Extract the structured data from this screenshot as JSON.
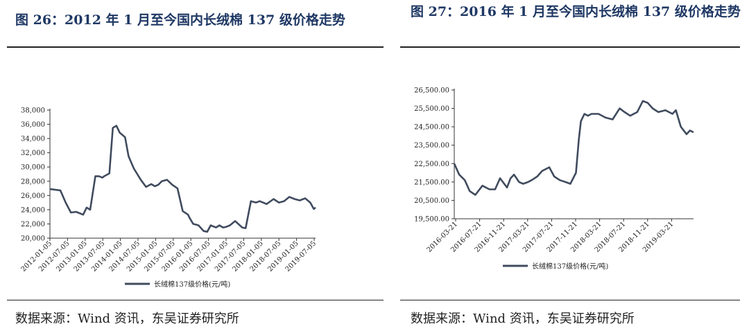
{
  "colors": {
    "line": "#404b5e",
    "title": "#1f3864",
    "axis": "#333333"
  },
  "left": {
    "title": "图 26：2012 年 1 月至今国内长绒棉 137 级价格走势",
    "source": "数据来源：Wind 资讯，东吴证券研究所"
  },
  "right": {
    "title": "图 27：2016 年 1 月至今国内长绒棉 137 级价格走势",
    "source": "数据来源：Wind 资讯，东吴证券研究所"
  },
  "chart_data": [
    {
      "type": "line",
      "ylim": [
        20000,
        38000
      ],
      "y_ticks": [
        20000,
        22000,
        24000,
        26000,
        28000,
        30000,
        32000,
        34000,
        36000,
        38000
      ],
      "y_tick_labels": [
        "20,000",
        "22,000",
        "24,000",
        "26,000",
        "28,000",
        "30,000",
        "32,000",
        "34,000",
        "36,000",
        "38,000"
      ],
      "x_tick_labels": [
        "2012-01-05",
        "2012-07-05",
        "2013-01-05",
        "2013-07-05",
        "2014-01-05",
        "2014-07-05",
        "2015-01-05",
        "2015-07-05",
        "2016-01-05",
        "2016-07-05",
        "2017-01-05",
        "2017-07-05",
        "2018-01-05",
        "2018-07-05",
        "2019-01-05",
        "2019-07-05"
      ],
      "grid": false,
      "legend_position": "bottom",
      "series": [
        {
          "name": "长绒棉137级价格(元/吨)",
          "x": [
            2012.0,
            2012.3,
            2012.45,
            2012.6,
            2012.75,
            2012.95,
            2013.05,
            2013.15,
            2013.3,
            2013.4,
            2013.5,
            2013.55,
            2013.7,
            2013.8,
            2013.9,
            2014.0,
            2014.05,
            2014.15,
            2014.25,
            2014.4,
            2014.5,
            2014.6,
            2014.75,
            2014.9,
            2015.0,
            2015.1,
            2015.2,
            2015.35,
            2015.5,
            2015.65,
            2015.8,
            2015.95,
            2016.0,
            2016.1,
            2016.25,
            2016.4,
            2016.5,
            2016.6,
            2016.75,
            2016.85,
            2016.95,
            2017.05,
            2017.15,
            2017.3,
            2017.5,
            2017.6,
            2017.75,
            2017.9,
            2018.0,
            2018.2,
            2018.4,
            2018.55,
            2018.7,
            2018.85,
            2019.0,
            2019.15,
            2019.3,
            2019.45,
            2019.55,
            2019.6
          ],
          "values": [
            26900,
            26700,
            25000,
            23600,
            23700,
            23300,
            24300,
            24000,
            28700,
            28700,
            28500,
            28700,
            29100,
            35500,
            35800,
            34800,
            34600,
            34200,
            31500,
            29800,
            29000,
            28200,
            27200,
            27600,
            27300,
            27500,
            28000,
            28200,
            27500,
            27000,
            23800,
            23300,
            22800,
            22000,
            21800,
            21000,
            20900,
            21800,
            21500,
            21800,
            21500,
            21600,
            21800,
            22400,
            21500,
            21400,
            25200,
            25000,
            25200,
            24800,
            25500,
            25000,
            25200,
            25800,
            25500,
            25300,
            25600,
            25000,
            24100,
            24300
          ]
        }
      ]
    },
    {
      "type": "line",
      "ylim": [
        19500,
        26500
      ],
      "y_ticks": [
        19500,
        20500,
        21500,
        22500,
        23500,
        24500,
        25500,
        26500
      ],
      "y_tick_labels": [
        "19,500.00",
        "20,500.00",
        "21,500.00",
        "22,500.00",
        "23,500.00",
        "24,500.00",
        "25,500.00",
        "26,500.00"
      ],
      "x_tick_labels": [
        "2016-03-21",
        "2016-07-21",
        "2016-11-21",
        "2017-03-21",
        "2017-07-21",
        "2017-11-21",
        "2018-03-21",
        "2018-07-21",
        "2018-11-21",
        "2019-03-21"
      ],
      "grid": false,
      "legend_position": "bottom",
      "series": [
        {
          "name": "长绒棉137级价格(元/吨)",
          "x": [
            2016.2,
            2016.27,
            2016.35,
            2016.42,
            2016.5,
            2016.6,
            2016.7,
            2016.78,
            2016.85,
            2016.95,
            2017.0,
            2017.05,
            2017.12,
            2017.18,
            2017.25,
            2017.3,
            2017.38,
            2017.45,
            2017.55,
            2017.62,
            2017.7,
            2017.78,
            2017.85,
            2017.93,
            2017.97,
            2018.0,
            2018.05,
            2018.1,
            2018.15,
            2018.25,
            2018.35,
            2018.45,
            2018.55,
            2018.62,
            2018.7,
            2018.8,
            2018.88,
            2018.95,
            2019.02,
            2019.1,
            2019.2,
            2019.3,
            2019.35,
            2019.42,
            2019.5,
            2019.55,
            2019.6
          ],
          "values": [
            22500,
            21900,
            21600,
            21000,
            20800,
            21300,
            21100,
            21100,
            21700,
            21200,
            21700,
            21900,
            21500,
            21400,
            21500,
            21600,
            21800,
            22100,
            22300,
            21800,
            21600,
            21500,
            21400,
            22000,
            23800,
            24800,
            25200,
            25100,
            25200,
            25200,
            25000,
            24900,
            25500,
            25300,
            25100,
            25300,
            25900,
            25800,
            25500,
            25300,
            25400,
            25200,
            25400,
            24500,
            24100,
            24300,
            24200
          ]
        }
      ]
    }
  ]
}
